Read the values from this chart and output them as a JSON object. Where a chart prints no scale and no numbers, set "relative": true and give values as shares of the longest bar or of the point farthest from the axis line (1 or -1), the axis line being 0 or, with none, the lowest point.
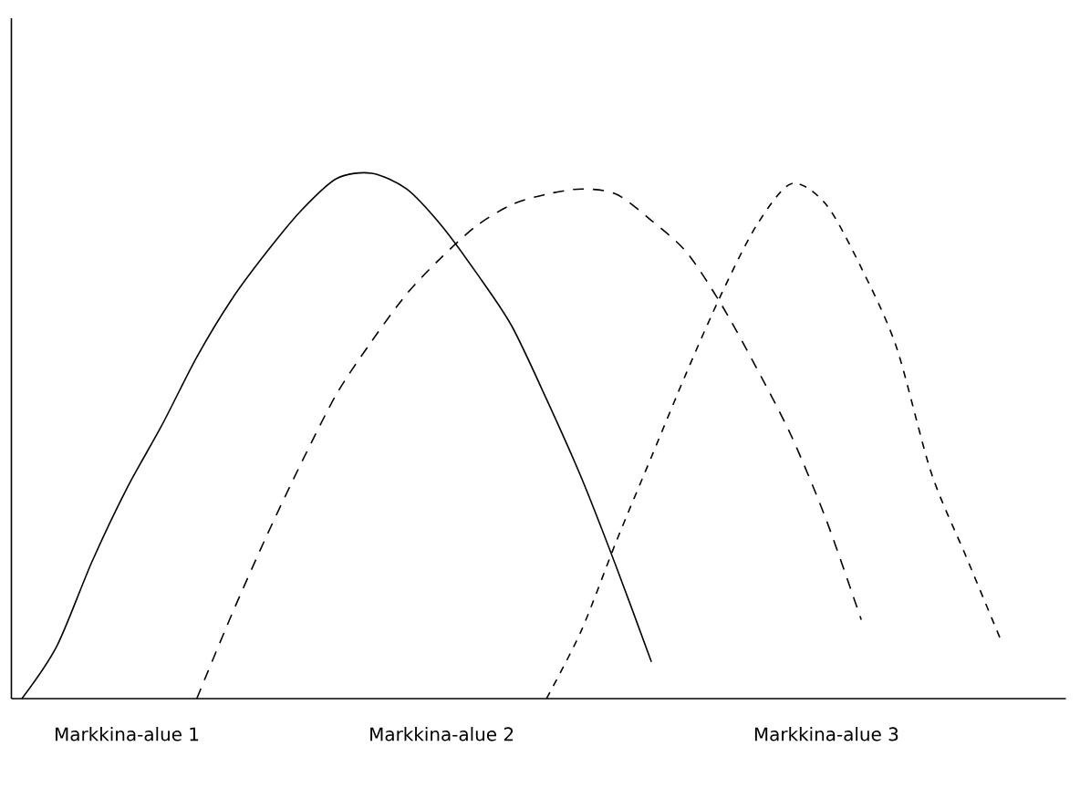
{
  "chart_data": {
    "type": "line",
    "relative": true,
    "categories": [
      null,
      null,
      null,
      "Markkina-alue 1",
      null,
      null,
      null,
      null,
      null,
      null,
      null,
      null,
      "Markkina-alue 2",
      null,
      null,
      null,
      null,
      null,
      null,
      null,
      null,
      null,
      null,
      "Markkina-alue 3",
      null,
      null,
      null,
      null,
      null,
      null
    ],
    "series": [
      {
        "color": "#000000",
        "line_style": "solid",
        "values": [
          0,
          0.1,
          0.26,
          0.4,
          0.52,
          0.65,
          0.76,
          0.85,
          0.93,
          0.99,
          1,
          0.97,
          0.9,
          0.81,
          0.71,
          0.57,
          0.42,
          0.25,
          0.07,
          null,
          null,
          null,
          null,
          null,
          null,
          null,
          null,
          null,
          null,
          null
        ]
      },
      {
        "color": "#000000",
        "line_style": "dashed",
        "values": [
          null,
          null,
          null,
          null,
          null,
          0,
          0.16,
          0.31,
          0.45,
          0.58,
          0.68,
          0.77,
          0.84,
          0.9,
          0.94,
          0.96,
          0.97,
          0.96,
          0.91,
          0.85,
          0.75,
          0.63,
          0.5,
          0.34,
          0.15,
          null,
          null,
          null,
          null,
          null
        ]
      },
      {
        "color": "#000000",
        "line_style": "dashed",
        "values": [
          null,
          null,
          null,
          null,
          null,
          null,
          null,
          null,
          null,
          null,
          null,
          null,
          null,
          null,
          null,
          0,
          0.13,
          0.3,
          0.46,
          0.62,
          0.77,
          0.9,
          0.98,
          0.94,
          0.82,
          0.67,
          0.43,
          0.27,
          0.11,
          null
        ]
      }
    ]
  }
}
